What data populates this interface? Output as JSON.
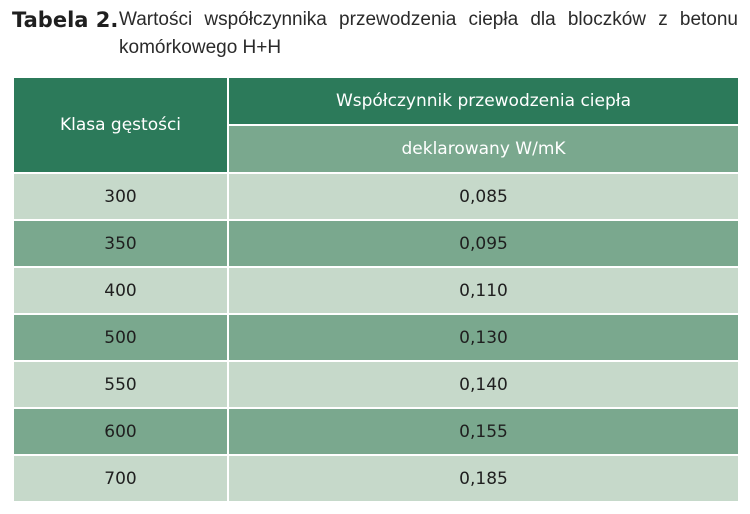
{
  "caption": {
    "label": "Tabela 2.",
    "text": "Wartości współczynnika przewodzenia ciepła dla bloczków z betonu komórkowego H+H"
  },
  "table": {
    "headers": {
      "density_class": "Klasa gęstości",
      "conductivity": "Współczynnik przewodzenia ciepła",
      "declared": "deklarowany W/mK"
    },
    "rows": [
      {
        "density": "300",
        "value": "0,085"
      },
      {
        "density": "350",
        "value": "0,095"
      },
      {
        "density": "400",
        "value": "0,110"
      },
      {
        "density": "500",
        "value": "0,130"
      },
      {
        "density": "550",
        "value": "0,140"
      },
      {
        "density": "600",
        "value": "0,155"
      },
      {
        "density": "700",
        "value": "0,185"
      }
    ]
  },
  "colors": {
    "header_dark": "#2c7a5a",
    "row_dark": "#7aa88e",
    "row_light": "#c6d9ca"
  }
}
